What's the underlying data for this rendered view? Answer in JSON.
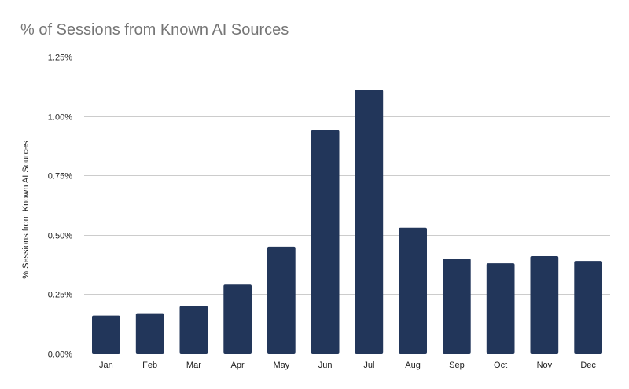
{
  "chart_data": {
    "type": "bar",
    "title": "% of Sessions from Known AI Sources",
    "xlabel": "",
    "ylabel": "% Sessions from Known AI Sources",
    "categories": [
      "Jan",
      "Feb",
      "Mar",
      "Apr",
      "May",
      "Jun",
      "Jul",
      "Aug",
      "Sep",
      "Oct",
      "Nov",
      "Dec"
    ],
    "values": [
      0.16,
      0.17,
      0.2,
      0.29,
      0.45,
      0.94,
      1.11,
      0.53,
      0.4,
      0.38,
      0.41,
      0.39
    ],
    "ylim": [
      0,
      1.25
    ],
    "yticks": [
      0,
      0.25,
      0.5,
      0.75,
      1.0,
      1.25
    ],
    "ytick_labels": [
      "0.00%",
      "0.25%",
      "0.50%",
      "0.75%",
      "1.00%",
      "1.25%"
    ],
    "grid": true,
    "legend": "none",
    "bar_color": "#22365a"
  }
}
